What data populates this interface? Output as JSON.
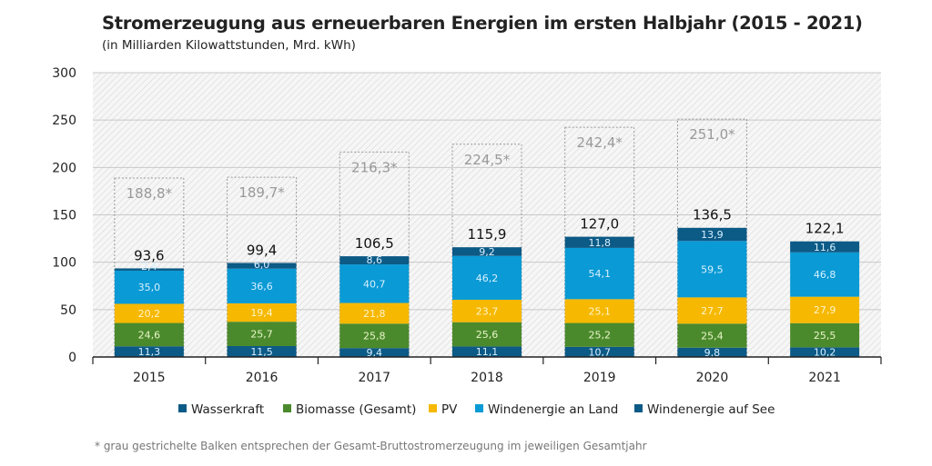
{
  "chart_data": {
    "type": "bar",
    "stacked": true,
    "title": "Stromerzeugung aus erneuerbaren Energien im ersten Halbjahr (2015 - 2021)",
    "subtitle": "(in Milliarden Kilowattstunden, Mrd. kWh)",
    "categories": [
      "2015",
      "2016",
      "2017",
      "2018",
      "2019",
      "2020",
      "2021"
    ],
    "ylim": [
      0,
      300
    ],
    "yticks": [
      0,
      50,
      100,
      150,
      200,
      250,
      300
    ],
    "grid": true,
    "legend_position": "bottom",
    "series": [
      {
        "name": "Wasserkraft",
        "color": "#0c5a86",
        "values": [
          11.3,
          11.5,
          9.4,
          11.1,
          10.7,
          9.8,
          10.2
        ],
        "labels": [
          "11,3",
          "11,5",
          "9,4",
          "11,1",
          "10,7",
          "9,8",
          "10,2"
        ]
      },
      {
        "name": "Biomasse (Gesamt)",
        "color": "#4b8a2c",
        "values": [
          24.6,
          25.7,
          25.8,
          25.6,
          25.2,
          25.4,
          25.5
        ],
        "labels": [
          "24,6",
          "25,7",
          "25,8",
          "25,6",
          "25,2",
          "25,4",
          "25,5"
        ]
      },
      {
        "name": "PV",
        "color": "#f6b800",
        "values": [
          20.2,
          19.4,
          21.8,
          23.7,
          25.1,
          27.7,
          27.9
        ],
        "labels": [
          "20,2",
          "19,4",
          "21,8",
          "23,7",
          "25,1",
          "27,7",
          "27,9"
        ]
      },
      {
        "name": "Windenergie an Land",
        "color": "#0a9ad5",
        "values": [
          35.0,
          36.6,
          40.7,
          46.2,
          54.1,
          59.5,
          46.8
        ],
        "labels": [
          "35,0",
          "36,6",
          "40,7",
          "46,2",
          "54,1",
          "59,5",
          "46,8"
        ]
      },
      {
        "name": "Windenergie auf See",
        "color": "#0c5a86",
        "values": [
          2.4,
          6.0,
          8.6,
          9.2,
          11.8,
          13.9,
          11.6
        ],
        "labels": [
          "2,4",
          "6,0",
          "8,6",
          "9,2",
          "11,8",
          "13,9",
          "11,6"
        ]
      }
    ],
    "totals": [
      93.6,
      99.4,
      106.5,
      115.9,
      127.0,
      136.5,
      122.1
    ],
    "total_labels": [
      "93,6",
      "99,4",
      "106,5",
      "115,9",
      "127,0",
      "136,5",
      "122,1"
    ],
    "gross_totals": [
      188.8,
      189.7,
      216.3,
      224.5,
      242.4,
      251.0,
      null
    ],
    "gross_labels": [
      "188,8*",
      "189,7*",
      "216,3*",
      "224,5*",
      "242,4*",
      "251,0*",
      ""
    ],
    "footnote": "* grau gestrichelte Balken entsprechen der Gesamt-Bruttostromerzeugung im jeweiligen Gesamtjahr"
  }
}
